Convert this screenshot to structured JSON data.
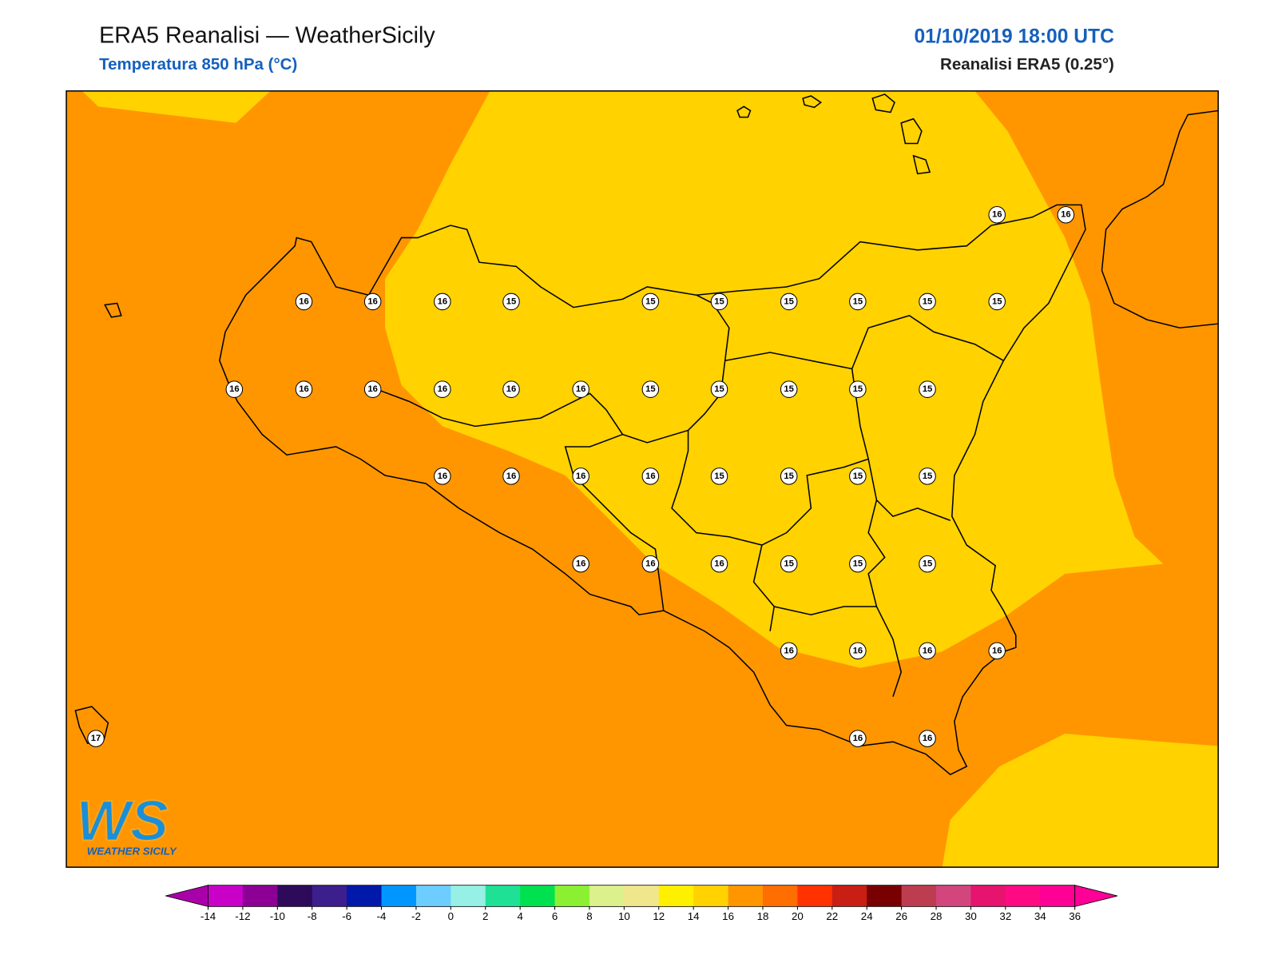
{
  "header": {
    "title": "ERA5 Reanalisi — WeatherSicily",
    "subtitle": "Temperatura 850 hPa (°C)",
    "datetime": "01/10/2019 18:00 UTC",
    "source": "Reanalisi ERA5 (0.25°)"
  },
  "map": {
    "labels": [
      16,
      16,
      16,
      16,
      16,
      15,
      15,
      15,
      15,
      15,
      15,
      15,
      16,
      16,
      16,
      16,
      16,
      16,
      15,
      15,
      15,
      15,
      15,
      16,
      16,
      16,
      16,
      15,
      15,
      15,
      15,
      16,
      16,
      16,
      15,
      15,
      15,
      16,
      16,
      16,
      16,
      17,
      16,
      16
    ]
  },
  "colorbar": {
    "ticks": [
      -14,
      -12,
      -10,
      -8,
      -6,
      -4,
      -2,
      0,
      2,
      4,
      6,
      8,
      10,
      12,
      14,
      16,
      18,
      20,
      22,
      24,
      26,
      28,
      30,
      32,
      34,
      36
    ],
    "colors": [
      "#aa00aa",
      "#c800c8",
      "#8c0096",
      "#2d0a5a",
      "#3c1e8c",
      "#0019aa",
      "#0096ff",
      "#6ecdff",
      "#96f0e6",
      "#1ee196",
      "#00e150",
      "#8cf032",
      "#dcf08c",
      "#f0e68c",
      "#fff000",
      "#ffd200",
      "#ff9600",
      "#ff6e00",
      "#ff3200",
      "#c81e14",
      "#780000",
      "#be3c50",
      "#d2467d",
      "#e6146e",
      "#ff0a82",
      "#ff0096",
      "#ff0096"
    ]
  },
  "logo": {
    "mark": "WS",
    "text": "WEATHER SICILY"
  }
}
